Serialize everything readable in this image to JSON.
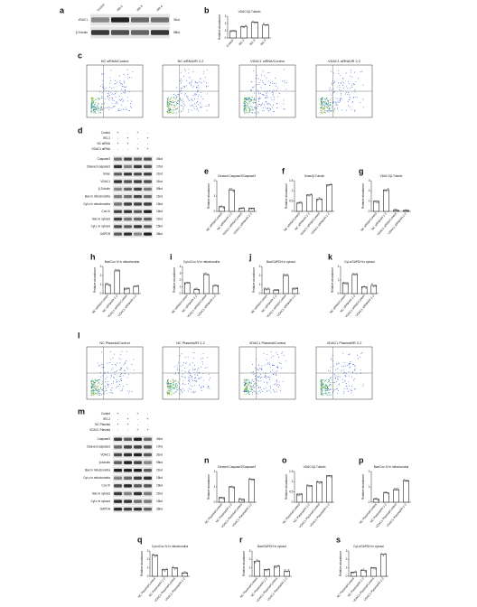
{
  "a": {
    "letter": "a",
    "lanes": [
      "Control",
      "IR2-2",
      "IR2-3",
      "IR2-4"
    ],
    "bands": [
      {
        "name": "VDAC1",
        "size": "31kd"
      },
      {
        "name": "β-Tubulin",
        "size": "55kd"
      }
    ]
  },
  "b": {
    "letter": "b",
    "chart": {
      "type": "bar",
      "title": "VDAC1/β-Tubulin",
      "ylabel": "Relative abundance",
      "categories": [
        "Control",
        "IR2-2",
        "IR2-3",
        "IR2-4"
      ],
      "values": [
        1.0,
        1.6,
        2.2,
        1.8
      ],
      "ylim": [
        0,
        3
      ],
      "yticks": [
        0,
        1,
        2,
        3
      ]
    }
  },
  "c": {
    "letter": "c",
    "plots": [
      "NC siRNA/Control",
      "NC siRNA/IR 2-2",
      "VDAC1 siRNA/Control",
      "VDAC1 siRNA/IR 2-2"
    ]
  },
  "d": {
    "letter": "d",
    "treatments": [
      {
        "name": "Control",
        "signs": [
          "+",
          "-",
          "+",
          "-"
        ]
      },
      {
        "name": "IR2-2",
        "signs": [
          "-",
          "+",
          "-",
          "+"
        ]
      },
      {
        "name": "NC siRNA",
        "signs": [
          "+",
          "+",
          "-",
          "-"
        ]
      },
      {
        "name": "VDAC1 siRNA",
        "signs": [
          "-",
          "-",
          "+",
          "+"
        ]
      }
    ],
    "bands": [
      {
        "name": "Caspase3",
        "size": "34kd"
      },
      {
        "name": "Cleaved caspase3",
        "size": "17kd"
      },
      {
        "name": "Smac",
        "size": "21kd"
      },
      {
        "name": "VDAC1",
        "size": "31kd"
      },
      {
        "name": "β-Tubulin",
        "size": "55kd"
      },
      {
        "name": "Bax in mitochondria",
        "size": "21kd"
      },
      {
        "name": "Cyt.c in mitochondria",
        "size": "15kd"
      },
      {
        "name": "Cox IV",
        "size": "16kd"
      },
      {
        "name": "Bax in cytosol",
        "size": "21kd"
      },
      {
        "name": "Cyt.c in cytosol",
        "size": "15kd"
      },
      {
        "name": "GAPDH",
        "size": "36kd"
      }
    ]
  },
  "e": {
    "letter": "e",
    "chart": {
      "type": "bar",
      "title": "Cleaved Caspase3/Caspase3",
      "ylabel": "Relative abundance",
      "categories": [
        "NC siRNA/Control",
        "NC siRNA/IR 2-2",
        "VDAC1 siRNA/Control",
        "VDAC1 siRNA/IR 2-2"
      ],
      "values": [
        0.3,
        1.4,
        0.2,
        0.2
      ],
      "ylim": [
        0,
        2
      ],
      "yticks": [
        0,
        1,
        2
      ]
    }
  },
  "f": {
    "letter": "f",
    "chart": {
      "type": "bar",
      "title": "Smac/β-Tubulin",
      "ylabel": "Relative abundance",
      "categories": [
        "NC siRNA/Control",
        "NC siRNA/IR 2-2",
        "VDAC1 siRNA/Control",
        "VDAC1 siRNA/IR 2-2"
      ],
      "values": [
        0.4,
        0.8,
        0.6,
        1.3
      ],
      "ylim": [
        0,
        1.5
      ],
      "yticks": [
        0,
        0.5,
        1,
        1.5
      ]
    }
  },
  "g": {
    "letter": "g",
    "chart": {
      "type": "bar",
      "title": "VDAC1/β-Tubulin",
      "ylabel": "Relative abundance",
      "categories": [
        "NC siRNA/Control",
        "NC siRNA/IR 2-2",
        "VDAC1 siRNA/Control",
        "VDAC1 siRNA/IR 2-2"
      ],
      "values": [
        1.0,
        2.1,
        0.1,
        0.1
      ],
      "ylim": [
        0,
        3
      ],
      "yticks": [
        0,
        1,
        2,
        3
      ]
    }
  },
  "h": {
    "letter": "h",
    "chart": {
      "type": "bar",
      "title": "Bax/Cox IV in mitochondria",
      "ylabel": "Relative abundance",
      "categories": [
        "NC siRNA/Control",
        "NC siRNA/IR 2-2",
        "VDAC1 siRNA/Control",
        "VDAC1 siRNA/IR 2-2"
      ],
      "values": [
        1.0,
        2.5,
        0.6,
        0.8
      ],
      "ylim": [
        0,
        3
      ],
      "yticks": [
        0,
        1,
        2,
        3
      ]
    }
  },
  "i": {
    "letter": "i",
    "chart": {
      "type": "bar",
      "title": "Cyt.c/Cox IV in mitochondria",
      "ylabel": "Relative abundance",
      "categories": [
        "NC siRNA/Control",
        "NC siRNA/IR 2-2",
        "VDAC1 siRNA/Control",
        "VDAC1 siRNA/IR 2-2"
      ],
      "values": [
        1.6,
        0.6,
        2.8,
        1.2
      ],
      "ylim": [
        0,
        4
      ],
      "yticks": [
        0,
        1,
        2,
        3,
        4
      ]
    }
  },
  "j": {
    "letter": "j",
    "chart": {
      "type": "bar",
      "title": "Bax/GAPDH in cytosol",
      "ylabel": "Relative abundance",
      "categories": [
        "NC siRNA/Control",
        "NC siRNA/IR 2-2",
        "VDAC1 siRNA/Control",
        "VDAC1 siRNA/IR 2-2"
      ],
      "values": [
        0.5,
        0.4,
        2.0,
        0.6
      ],
      "ylim": [
        0,
        3
      ],
      "yticks": [
        0,
        1,
        2,
        3
      ]
    }
  },
  "k": {
    "letter": "k",
    "chart": {
      "type": "bar",
      "title": "Cyt.c/GAPDH in cytosol",
      "ylabel": "Relative abundance",
      "categories": [
        "NC siRNA/Control",
        "NC siRNA/IR 2-2",
        "VDAC1 siRNA/Control",
        "VDAC1 siRNA/IR 2-2"
      ],
      "values": [
        0.8,
        1.4,
        0.5,
        0.6
      ],
      "ylim": [
        0,
        2
      ],
      "yticks": [
        0,
        1,
        2
      ]
    }
  },
  "l": {
    "letter": "l",
    "plots": [
      "NC Plasmid/Control",
      "NC Plasmid/IR 2-2",
      "VDAC1 Plasmid/Control",
      "VDAC1 Plasmid/IR 2-2"
    ]
  },
  "m": {
    "letter": "m",
    "treatments": [
      {
        "name": "Control",
        "signs": [
          "+",
          "-",
          "+",
          "-"
        ]
      },
      {
        "name": "IR2-2",
        "signs": [
          "-",
          "+",
          "-",
          "+"
        ]
      },
      {
        "name": "NC Plasmid",
        "signs": [
          "+",
          "+",
          "-",
          "-"
        ]
      },
      {
        "name": "VDAC1 Plasmid",
        "signs": [
          "-",
          "-",
          "+",
          "+"
        ]
      }
    ],
    "bands": [
      {
        "name": "Caspase3",
        "size": "34kd"
      },
      {
        "name": "Cleaved caspase3",
        "size": "17kd"
      },
      {
        "name": "VDAC1",
        "size": "31kd"
      },
      {
        "name": "β-tubulin",
        "size": "55kd"
      },
      {
        "name": "Bax in mitochondria",
        "size": "21kd"
      },
      {
        "name": "Cyt.c in mitochondria",
        "size": "15kd"
      },
      {
        "name": "Cox IV",
        "size": "16kd"
      },
      {
        "name": "Bax in cytosol",
        "size": "21kd"
      },
      {
        "name": "Cyt.c in cytosol",
        "size": "15kd"
      },
      {
        "name": "GAPDH",
        "size": "36kd"
      }
    ]
  },
  "n": {
    "letter": "n",
    "chart": {
      "type": "bar",
      "title": "Cleaved Caspase3/Caspase3",
      "ylabel": "Relative abundance",
      "categories": [
        "NC Plasmid/Control",
        "NC Plasmid/IR 2-2",
        "VDAC1 Plasmid/Control",
        "VDAC1 Plasmid/IR 2-2"
      ],
      "values": [
        0.3,
        1.0,
        0.2,
        1.5
      ],
      "ylim": [
        0,
        2
      ],
      "yticks": [
        0,
        1,
        2
      ]
    }
  },
  "o": {
    "letter": "o",
    "chart": {
      "type": "bar",
      "title": "VDAC1/β-Tubulin",
      "ylabel": "Relative abundance",
      "categories": [
        "NC Plasmid/Control",
        "NC Plasmid/IR 2-2",
        "VDAC1 Plasmid/Control",
        "VDAC1 Plasmid/IR 2-2"
      ],
      "values": [
        0.4,
        0.8,
        1.0,
        1.3
      ],
      "ylim": [
        0,
        1.5
      ],
      "yticks": [
        0,
        0.5,
        1,
        1.5
      ]
    }
  },
  "p": {
    "letter": "p",
    "chart": {
      "type": "bar",
      "title": "Bax/Cox IV in mitochondria",
      "ylabel": "Relative abundance",
      "categories": [
        "NC Plasmid/Control",
        "NC Plasmid/IR 2-2",
        "VDAC1 Plasmid/Control",
        "VDAC1 Plasmid/IR 2-2"
      ],
      "values": [
        0.2,
        0.6,
        0.8,
        1.4
      ],
      "ylim": [
        0,
        2
      ],
      "yticks": [
        0,
        1,
        2
      ]
    }
  },
  "q": {
    "letter": "q",
    "chart": {
      "type": "bar",
      "title": "Cyt.c/Cox IV in mitochondria",
      "ylabel": "Relative abundance",
      "categories": [
        "NC Plasmid/Control",
        "NC Plasmid/IR 2-2",
        "VDAC1 Plasmid/Control",
        "VDAC1 Plasmid/IR 2-2"
      ],
      "values": [
        2.5,
        0.8,
        1.0,
        0.4
      ],
      "ylim": [
        0,
        3
      ],
      "yticks": [
        0,
        1,
        2,
        3
      ]
    }
  },
  "r": {
    "letter": "r",
    "chart": {
      "type": "bar",
      "title": "Bax/GAPDH in cytosol",
      "ylabel": "Relative abundance",
      "categories": [
        "NC Plasmid/Control",
        "NC Plasmid/IR 2-2",
        "VDAC1 Plasmid/Control",
        "VDAC1 Plasmid/IR 2-2"
      ],
      "values": [
        1.8,
        0.8,
        1.2,
        0.6
      ],
      "ylim": [
        0,
        3
      ],
      "yticks": [
        0,
        1,
        2,
        3
      ]
    }
  },
  "s": {
    "letter": "s",
    "chart": {
      "type": "bar",
      "title": "Cyt.c/GAPDH in cytosol",
      "ylabel": "Relative abundance",
      "categories": [
        "NC Plasmid/Control",
        "NC Plasmid/IR 2-2",
        "VDAC1 Plasmid/Control",
        "VDAC1 Plasmid/IR 2-2"
      ],
      "values": [
        0.5,
        0.7,
        1.0,
        2.6
      ],
      "ylim": [
        0,
        3
      ],
      "yticks": [
        0,
        1,
        2,
        3
      ]
    }
  }
}
